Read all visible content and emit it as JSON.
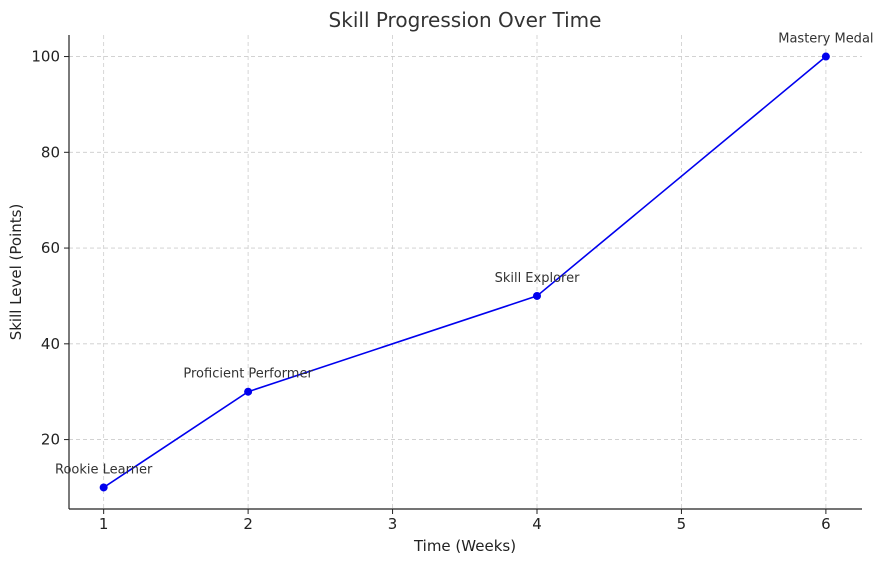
{
  "chart_data": {
    "type": "line",
    "title": "Skill Progression Over Time",
    "xlabel": "Time (Weeks)",
    "ylabel": "Skill Level (Points)",
    "x": [
      1,
      2,
      4,
      6
    ],
    "xticks": [
      1,
      2,
      3,
      4,
      5,
      6
    ],
    "yticks": [
      20,
      40,
      60,
      80,
      100
    ],
    "xlim": [
      0.76,
      6.25
    ],
    "ylim": [
      5.5,
      104.5
    ],
    "grid": true,
    "series": [
      {
        "values": [
          10,
          30,
          50,
          100
        ],
        "color": "#0000ee"
      }
    ],
    "annotations": [
      {
        "x": 1,
        "y": 10,
        "text": "Rookie Learner"
      },
      {
        "x": 2,
        "y": 30,
        "text": "Proficient Performer"
      },
      {
        "x": 4,
        "y": 50,
        "text": "Skill Explorer"
      },
      {
        "x": 6,
        "y": 100,
        "text": "Mastery Medal"
      }
    ]
  }
}
